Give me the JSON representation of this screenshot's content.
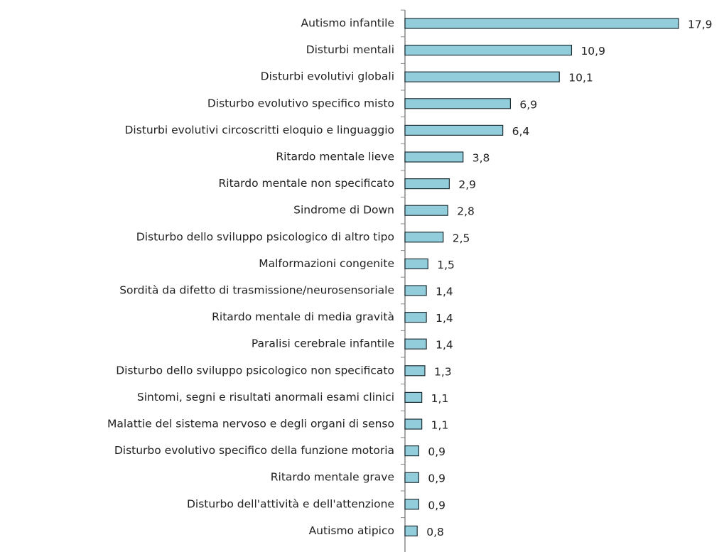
{
  "chart_data": {
    "type": "barh",
    "color": "#92cddc",
    "categories": [
      "Autismo infantile",
      "Disturbi mentali",
      "Disturbi evolutivi globali",
      "Disturbo evolutivo specifico misto",
      "Disturbi evolutivi circoscritti eloquio e linguaggio",
      "Ritardo mentale lieve",
      "Ritardo mentale non specificato",
      "Sindrome di Down",
      "Disturbo dello sviluppo psicologico di altro tipo",
      "Malformazioni congenite",
      "Sordità da difetto di trasmissione/neurosensoriale",
      "Ritardo mentale di media gravità",
      "Paralisi cerebrale infantile",
      "Disturbo dello sviluppo psicologico non specificato",
      "Sintomi, segni e risultati anormali esami clinici",
      "Malattie del sistema nervoso e degli organi di senso",
      "Disturbo evolutivo specifico della funzione motoria",
      "Ritardo mentale grave",
      "Disturbo dell'attività e dell'attenzione",
      "Autismo atipico"
    ],
    "values": [
      17.9,
      10.9,
      10.1,
      6.9,
      6.4,
      3.8,
      2.9,
      2.8,
      2.5,
      1.5,
      1.4,
      1.4,
      1.4,
      1.3,
      1.1,
      1.1,
      0.9,
      0.9,
      0.9,
      0.8
    ],
    "value_labels": [
      "17,9",
      "10,9",
      "10,1",
      "6,9",
      "6,4",
      "3,8",
      "2,9",
      "2,8",
      "2,5",
      "1,5",
      "1,4",
      "1,4",
      "1,4",
      "1,3",
      "1,1",
      "1,1",
      "0,9",
      "0,9",
      "0,9",
      "0,8"
    ]
  }
}
